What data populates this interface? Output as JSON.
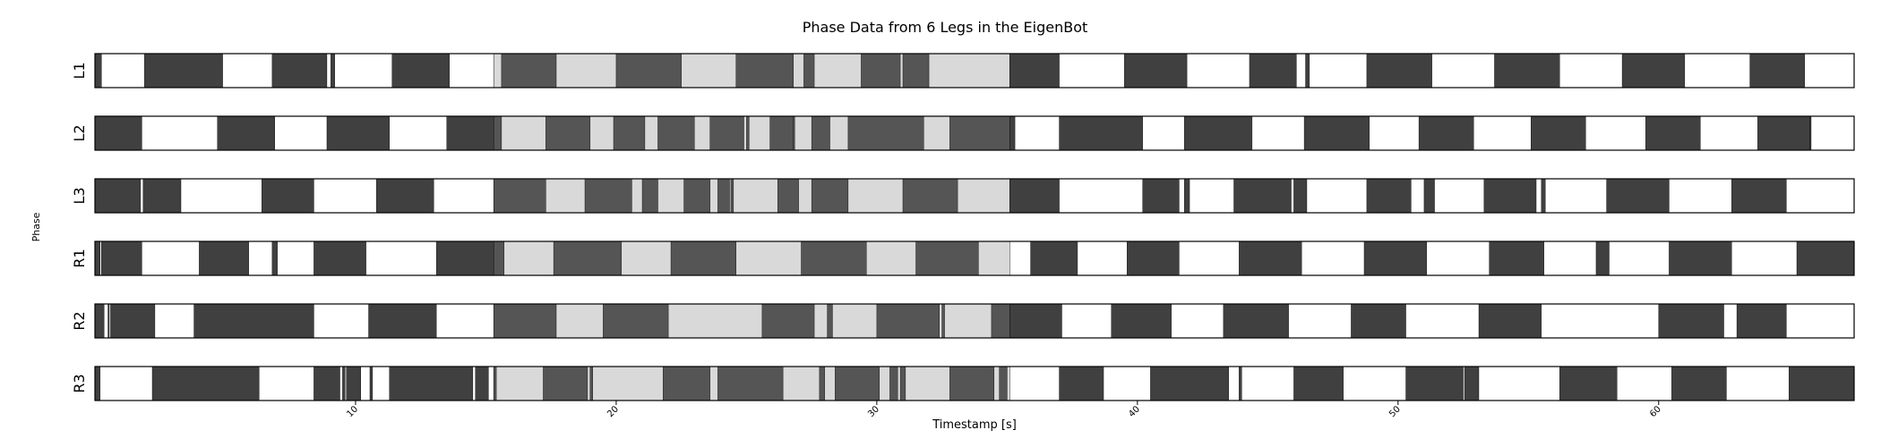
{
  "chart_data": {
    "type": "gantt",
    "title": "Phase Data from 6 Legs in the EigenBot",
    "xlabel": "Timestamp [s]",
    "ylabel": "Phase",
    "xlim": [
      0,
      67.5
    ],
    "xticks": [
      10,
      20,
      30,
      40,
      50,
      60
    ],
    "phase_colors": {
      "stance": "#404040",
      "swing": "#ffffff",
      "stance_light": "#555555",
      "swing_light": "#d9d9d9"
    },
    "light_region": [
      15.3,
      35.1
    ],
    "legs": [
      {
        "label": "L1",
        "stance_intervals": [
          [
            0.0,
            0.25
          ],
          [
            1.9,
            4.9
          ],
          [
            6.8,
            8.9
          ],
          [
            9.05,
            9.2
          ],
          [
            11.4,
            13.6
          ],
          [
            15.6,
            17.7
          ],
          [
            20.0,
            22.5
          ],
          [
            24.6,
            26.8
          ],
          [
            27.2,
            27.6
          ],
          [
            29.4,
            30.9
          ],
          [
            31.0,
            32.0
          ],
          [
            35.1,
            37.0
          ],
          [
            39.5,
            41.9
          ],
          [
            44.3,
            46.1
          ],
          [
            46.45,
            46.6
          ],
          [
            48.8,
            51.3
          ],
          [
            53.7,
            56.2
          ],
          [
            58.6,
            61.0
          ],
          [
            63.5,
            65.6
          ]
        ]
      },
      {
        "label": "L2",
        "stance_intervals": [
          [
            0.0,
            1.8
          ],
          [
            4.7,
            6.9
          ],
          [
            8.9,
            11.3
          ],
          [
            13.5,
            15.6
          ],
          [
            17.3,
            19.0
          ],
          [
            19.9,
            21.1
          ],
          [
            21.6,
            23.0
          ],
          [
            23.6,
            24.9
          ],
          [
            25.0,
            25.1
          ],
          [
            25.9,
            26.8
          ],
          [
            26.8,
            26.85
          ],
          [
            27.5,
            28.2
          ],
          [
            28.9,
            31.8
          ],
          [
            32.8,
            35.3
          ],
          [
            37.0,
            40.2
          ],
          [
            41.8,
            44.4
          ],
          [
            46.4,
            48.9
          ],
          [
            50.8,
            52.9
          ],
          [
            55.1,
            57.2
          ],
          [
            59.5,
            61.6
          ],
          [
            63.8,
            65.8
          ],
          [
            65.8,
            65.85
          ]
        ]
      },
      {
        "label": "L3",
        "stance_intervals": [
          [
            0.0,
            1.75
          ],
          [
            1.85,
            3.3
          ],
          [
            6.4,
            8.4
          ],
          [
            10.8,
            13.0
          ],
          [
            15.3,
            17.3
          ],
          [
            18.8,
            20.6
          ],
          [
            21.0,
            21.6
          ],
          [
            22.6,
            23.6
          ],
          [
            23.9,
            24.35
          ],
          [
            24.4,
            24.5
          ],
          [
            26.2,
            27.0
          ],
          [
            27.5,
            28.9
          ],
          [
            31.0,
            33.1
          ],
          [
            35.1,
            37.0
          ],
          [
            40.2,
            41.6
          ],
          [
            41.8,
            42.0
          ],
          [
            43.7,
            45.9
          ],
          [
            46.0,
            46.5
          ],
          [
            48.8,
            50.5
          ],
          [
            51.0,
            51.4
          ],
          [
            53.3,
            55.3
          ],
          [
            55.5,
            55.65
          ],
          [
            58.0,
            60.4
          ],
          [
            62.8,
            64.9
          ]
        ]
      },
      {
        "label": "R1",
        "stance_intervals": [
          [
            0.0,
            0.2
          ],
          [
            0.25,
            1.8
          ],
          [
            4.0,
            5.9
          ],
          [
            6.8,
            7.0
          ],
          [
            8.4,
            10.4
          ],
          [
            13.1,
            15.3
          ],
          [
            15.3,
            15.7
          ],
          [
            17.6,
            20.2
          ],
          [
            22.1,
            24.6
          ],
          [
            27.1,
            29.6
          ],
          [
            31.5,
            33.9
          ],
          [
            35.9,
            37.7
          ],
          [
            39.6,
            41.6
          ],
          [
            43.9,
            46.3
          ],
          [
            48.7,
            51.1
          ],
          [
            53.5,
            55.6
          ],
          [
            57.6,
            58.1
          ],
          [
            60.4,
            62.8
          ],
          [
            65.3,
            67.5
          ]
        ]
      },
      {
        "label": "R2",
        "stance_intervals": [
          [
            0.0,
            0.35
          ],
          [
            0.5,
            0.55
          ],
          [
            0.6,
            2.3
          ],
          [
            3.8,
            8.4
          ],
          [
            10.5,
            13.1
          ],
          [
            15.3,
            17.7
          ],
          [
            19.5,
            22.0
          ],
          [
            25.6,
            27.6
          ],
          [
            28.1,
            28.3
          ],
          [
            30.0,
            32.4
          ],
          [
            32.5,
            32.6
          ],
          [
            34.4,
            35.1
          ],
          [
            35.1,
            37.1
          ],
          [
            39.0,
            41.3
          ],
          [
            43.3,
            45.8
          ],
          [
            48.2,
            50.3
          ],
          [
            53.1,
            55.5
          ],
          [
            60.0,
            62.5
          ],
          [
            63.0,
            64.9
          ]
        ]
      },
      {
        "label": "R3",
        "stance_intervals": [
          [
            0.0,
            0.2
          ],
          [
            2.2,
            6.3
          ],
          [
            8.4,
            9.4
          ],
          [
            9.5,
            9.6
          ],
          [
            9.65,
            10.2
          ],
          [
            10.55,
            10.65
          ],
          [
            11.3,
            14.5
          ],
          [
            14.6,
            15.1
          ],
          [
            15.3,
            15.4
          ],
          [
            17.2,
            18.9
          ],
          [
            19.0,
            19.1
          ],
          [
            21.8,
            23.6
          ],
          [
            23.9,
            26.4
          ],
          [
            27.8,
            28.0
          ],
          [
            28.4,
            30.1
          ],
          [
            30.5,
            30.8
          ],
          [
            30.9,
            31.1
          ],
          [
            32.8,
            34.5
          ],
          [
            34.7,
            35.0
          ],
          [
            37.0,
            38.7
          ],
          [
            40.5,
            43.5
          ],
          [
            43.9,
            44.0
          ],
          [
            46.0,
            47.9
          ],
          [
            50.3,
            52.5
          ],
          [
            52.55,
            53.1
          ],
          [
            56.2,
            58.4
          ],
          [
            60.5,
            62.6
          ],
          [
            65.0,
            67.5
          ]
        ]
      }
    ]
  }
}
